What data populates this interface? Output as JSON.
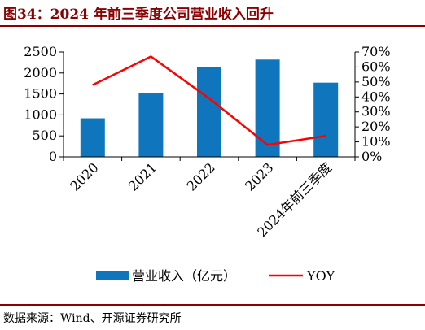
{
  "figure_title": "图34：2024 年前三季度公司营业收入回升",
  "source_note": "数据来源：Wind、开源证券研究所",
  "colors": {
    "bar": "#0f75bc",
    "line": "#ff0000",
    "title": "#8b0000"
  },
  "chart_data": {
    "type": "bar",
    "categories": [
      "2020",
      "2021",
      "2022",
      "2023",
      "2024年前三季度"
    ],
    "series": [
      {
        "name": "营业收入（亿元）",
        "type": "bar",
        "axis": "left",
        "values": [
          920,
          1530,
          2140,
          2320,
          1770
        ]
      },
      {
        "name": "YOY",
        "type": "line",
        "axis": "right",
        "values": [
          0.48,
          0.67,
          0.39,
          0.08,
          0.14
        ]
      }
    ],
    "y_left": {
      "min": 0,
      "max": 2500,
      "ticks": [
        0,
        500,
        1000,
        1500,
        2000,
        2500
      ]
    },
    "y_right": {
      "min": 0,
      "max": 0.7,
      "ticks": [
        "0%",
        "10%",
        "20%",
        "30%",
        "40%",
        "50%",
        "60%",
        "70%"
      ]
    },
    "grid": false,
    "legend_position": "bottom"
  }
}
